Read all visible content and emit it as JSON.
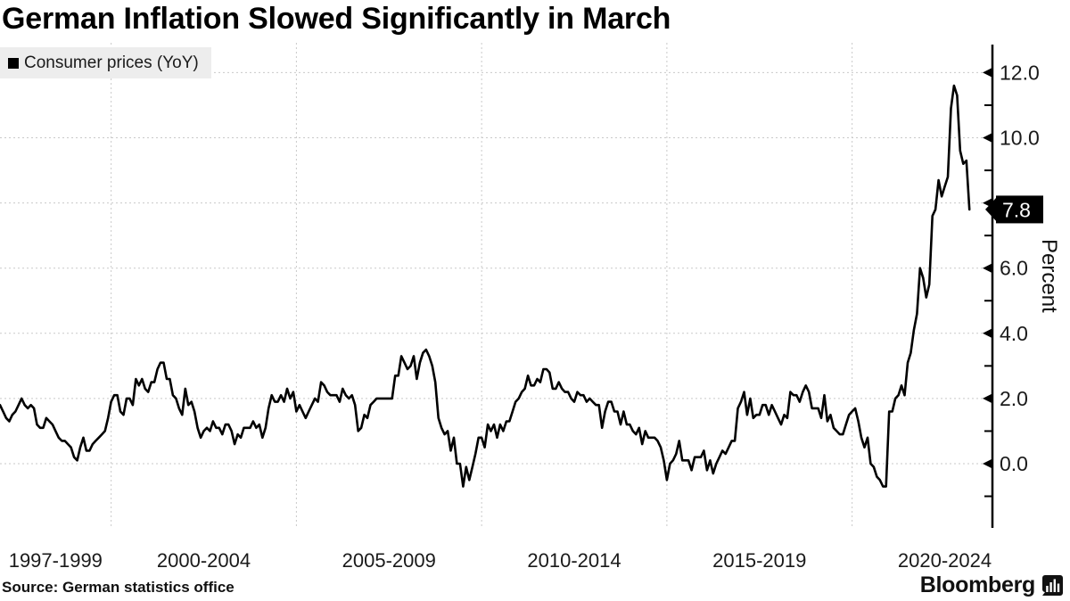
{
  "page": {
    "title": "German Inflation Slowed Significantly in March",
    "source": "Source: German statistics office",
    "branding": "Bloomberg"
  },
  "legend": {
    "label": "Consumer prices (YoY)"
  },
  "axis": {
    "y_title": "Percent",
    "y_major_tick_labels": [
      "12.0",
      "10.0",
      "8.0",
      "6.0",
      "4.0",
      "2.0",
      "0.0"
    ]
  },
  "colors": {
    "line": "#000000",
    "grid": "#c9c9c9",
    "axis": "#000000",
    "badge_bg": "#000000",
    "badge_text": "#ffffff",
    "legend_bg": "#ededed",
    "text": "#1a1a1a"
  },
  "chart_data": {
    "type": "line",
    "title": "German Inflation Slowed Significantly in March",
    "xlabel": "",
    "ylabel": "Percent",
    "grid": true,
    "legend_position": "top-left",
    "ylim": [
      -2,
      13
    ],
    "y_major_ticks": [
      12,
      10,
      8,
      6,
      4,
      2,
      0
    ],
    "y_minor_ticks": [
      11,
      9,
      7,
      5,
      3,
      1,
      -1
    ],
    "x_gridline_years": [
      2000,
      2005,
      2010,
      2015,
      2020
    ],
    "x_tick_labels": [
      "1997-1999",
      "2000-2004",
      "2005-2009",
      "2010-2014",
      "2015-2019",
      "2020-2024"
    ],
    "last_value": 7.8,
    "last_value_label": "7.8",
    "series": [
      {
        "name": "Consumer prices (YoY)",
        "start": "1997-01",
        "end": "2023-03",
        "frequency": "monthly",
        "values": [
          1.8,
          1.6,
          1.4,
          1.3,
          1.5,
          1.6,
          1.8,
          2.0,
          1.8,
          1.7,
          1.8,
          1.7,
          1.2,
          1.1,
          1.1,
          1.4,
          1.3,
          1.2,
          1.0,
          0.8,
          0.7,
          0.7,
          0.6,
          0.5,
          0.2,
          0.1,
          0.5,
          0.8,
          0.4,
          0.4,
          0.6,
          0.7,
          0.8,
          0.9,
          1.0,
          1.4,
          1.9,
          2.1,
          2.1,
          1.6,
          1.5,
          2.0,
          2.0,
          1.8,
          2.6,
          2.4,
          2.6,
          2.3,
          2.2,
          2.5,
          2.5,
          2.9,
          3.1,
          3.1,
          2.6,
          2.6,
          2.1,
          2.0,
          1.7,
          1.5,
          2.3,
          1.8,
          1.9,
          1.6,
          1.1,
          0.8,
          1.0,
          1.1,
          1.0,
          1.3,
          1.1,
          1.1,
          0.9,
          1.2,
          1.2,
          1.0,
          0.6,
          0.9,
          0.8,
          1.1,
          1.1,
          1.1,
          1.3,
          1.1,
          1.2,
          0.8,
          1.1,
          1.7,
          2.1,
          1.9,
          1.9,
          2.1,
          1.9,
          2.3,
          2.0,
          2.2,
          1.6,
          1.8,
          1.6,
          1.4,
          1.6,
          1.8,
          2.0,
          1.9,
          2.5,
          2.4,
          2.2,
          2.1,
          2.1,
          2.1,
          1.9,
          2.3,
          2.1,
          2.0,
          2.1,
          1.8,
          1.0,
          1.1,
          1.5,
          1.4,
          1.8,
          1.9,
          2.0,
          2.0,
          2.0,
          2.0,
          2.0,
          2.0,
          2.7,
          2.7,
          3.3,
          3.1,
          2.9,
          3.0,
          3.3,
          2.6,
          3.1,
          3.4,
          3.5,
          3.3,
          3.0,
          2.5,
          1.4,
          1.1,
          0.9,
          1.0,
          0.4,
          0.8,
          0.0,
          0.0,
          -0.7,
          -0.1,
          -0.5,
          -0.1,
          0.3,
          0.8,
          0.8,
          0.5,
          1.2,
          1.0,
          1.2,
          0.8,
          1.2,
          1.0,
          1.3,
          1.3,
          1.6,
          1.9,
          2.0,
          2.2,
          2.3,
          2.7,
          2.4,
          2.4,
          2.6,
          2.5,
          2.9,
          2.9,
          2.8,
          2.3,
          2.3,
          2.5,
          2.3,
          2.2,
          2.2,
          2.0,
          1.9,
          2.2,
          2.1,
          2.1,
          1.9,
          2.0,
          1.9,
          1.8,
          1.8,
          1.1,
          1.6,
          1.9,
          1.9,
          1.6,
          1.6,
          1.2,
          1.6,
          1.2,
          1.2,
          1.0,
          0.9,
          1.1,
          0.6,
          1.0,
          0.8,
          0.8,
          0.8,
          0.7,
          0.5,
          0.1,
          -0.5,
          0.0,
          0.1,
          0.3,
          0.7,
          0.1,
          0.1,
          0.1,
          -0.2,
          0.2,
          0.2,
          0.2,
          0.4,
          -0.2,
          0.1,
          -0.3,
          0.0,
          0.2,
          0.4,
          0.3,
          0.5,
          0.7,
          0.7,
          1.7,
          1.9,
          2.2,
          1.5,
          2.0,
          1.4,
          1.5,
          1.5,
          1.8,
          1.8,
          1.5,
          1.8,
          1.6,
          1.4,
          1.2,
          1.5,
          1.4,
          2.2,
          2.1,
          2.1,
          1.9,
          2.2,
          2.4,
          2.2,
          1.7,
          1.7,
          1.7,
          1.4,
          2.1,
          1.3,
          1.5,
          1.1,
          1.0,
          0.9,
          0.9,
          1.2,
          1.5,
          1.6,
          1.7,
          1.3,
          0.8,
          0.5,
          0.8,
          0.0,
          -0.1,
          -0.4,
          -0.5,
          -0.7,
          -0.7,
          1.6,
          1.6,
          2.0,
          2.1,
          2.4,
          2.1,
          3.1,
          3.4,
          4.1,
          4.6,
          6.0,
          5.7,
          5.1,
          5.5,
          7.6,
          7.8,
          8.7,
          8.2,
          8.5,
          8.8,
          10.9,
          11.6,
          11.3,
          9.6,
          9.2,
          9.3,
          7.8
        ]
      }
    ]
  }
}
